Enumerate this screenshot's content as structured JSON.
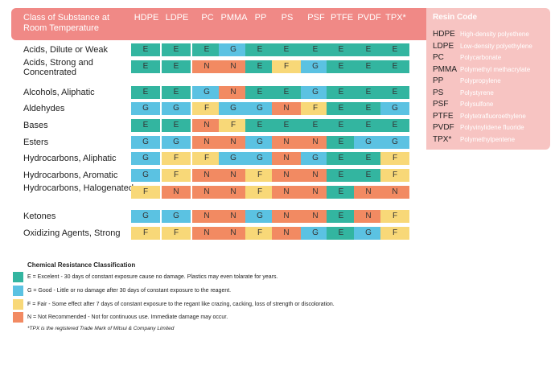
{
  "header": {
    "title_line1": "Class of Substance at",
    "title_line2": "Room Temperature",
    "columns": [
      "HDPE",
      "LDPE",
      "PC",
      "PMMA",
      "PP",
      "PS",
      "PSF",
      "PTFE",
      "PVDF",
      "TPX*"
    ]
  },
  "resin_code": {
    "title": "Resin Code",
    "items": [
      {
        "code": "HDPE",
        "desc": "High-density polyethene"
      },
      {
        "code": "LDPE",
        "desc": "Low-density polyethylene"
      },
      {
        "code": "PC",
        "desc": "Polycarbonate"
      },
      {
        "code": "PMMA",
        "desc": "Polymethyl methacrylate"
      },
      {
        "code": "PP",
        "desc": "Polypropylene"
      },
      {
        "code": "PS",
        "desc": "Polystyrene"
      },
      {
        "code": "PSF",
        "desc": "Polysulfone"
      },
      {
        "code": "PTFE",
        "desc": "Polytetrafluoroethylene"
      },
      {
        "code": "PVDF",
        "desc": "Polyvinylidene fluoride"
      },
      {
        "code": "TPX*",
        "desc": "Polymethylpentene"
      }
    ]
  },
  "rows": [
    {
      "label": "Acids, Dilute or Weak",
      "ratings": [
        "E",
        "E",
        "E",
        "G",
        "E",
        "E",
        "E",
        "E",
        "E",
        "E"
      ]
    },
    {
      "label": "Acids, Strong and Concentrated",
      "ratings": [
        "E",
        "E",
        "N",
        "N",
        "E",
        "F",
        "G",
        "E",
        "E",
        "E"
      ]
    },
    {
      "label": "Alcohols, Aliphatic",
      "ratings": [
        "E",
        "E",
        "G",
        "N",
        "E",
        "E",
        "G",
        "E",
        "E",
        "E"
      ]
    },
    {
      "label": "Aldehydes",
      "ratings": [
        "G",
        "G",
        "F",
        "G",
        "G",
        "N",
        "F",
        "E",
        "E",
        "G"
      ]
    },
    {
      "label": "Bases",
      "ratings": [
        "E",
        "E",
        "N",
        "F",
        "E",
        "E",
        "E",
        "E",
        "E",
        "E"
      ]
    },
    {
      "label": "Esters",
      "ratings": [
        "G",
        "G",
        "N",
        "N",
        "G",
        "N",
        "N",
        "E",
        "G",
        "G"
      ]
    },
    {
      "label": "Hydrocarbons, Aliphatic",
      "ratings": [
        "G",
        "F",
        "F",
        "G",
        "G",
        "N",
        "G",
        "E",
        "E",
        "F"
      ]
    },
    {
      "label": "Hydrocarbons, Aromatic",
      "ratings": [
        "G",
        "F",
        "N",
        "N",
        "F",
        "N",
        "N",
        "E",
        "E",
        "F"
      ]
    },
    {
      "label": "Hydrocarbons, Halogenated",
      "ratings": [
        "F",
        "N",
        "N",
        "N",
        "F",
        "N",
        "N",
        "E",
        "N",
        "N"
      ]
    },
    {
      "label": "Ketones",
      "ratings": [
        "G",
        "G",
        "N",
        "N",
        "G",
        "N",
        "N",
        "E",
        "N",
        "F"
      ]
    },
    {
      "label": "Oxidizing Agents, Strong",
      "ratings": [
        "F",
        "F",
        "N",
        "N",
        "F",
        "N",
        "G",
        "E",
        "G",
        "F"
      ]
    }
  ],
  "legend": {
    "title": "Chemical Resistance Classification",
    "items": [
      {
        "key": "E",
        "text": "E = Excelent - 30 days of constant exposure cause no damage. Plastics may even tolarate for years.",
        "color": "#33b5a0"
      },
      {
        "key": "G",
        "text": "G = Good - Little or no damage after 30 days of constant exposure to the reagent.",
        "color": "#5bc2e2"
      },
      {
        "key": "F",
        "text": "F = Fair - Some effect after 7 days of constant exposure to the regant like crazing, cacking, loss of strength or discoloration.",
        "color": "#f8d878"
      },
      {
        "key": "N",
        "text": "N = Not Recommended - Not for continuous use. Immediate damage may occur.",
        "color": "#f28a62"
      }
    ]
  },
  "footnote": "*TPX is the registered Trade Mark of Mitsui & Company Limited"
}
